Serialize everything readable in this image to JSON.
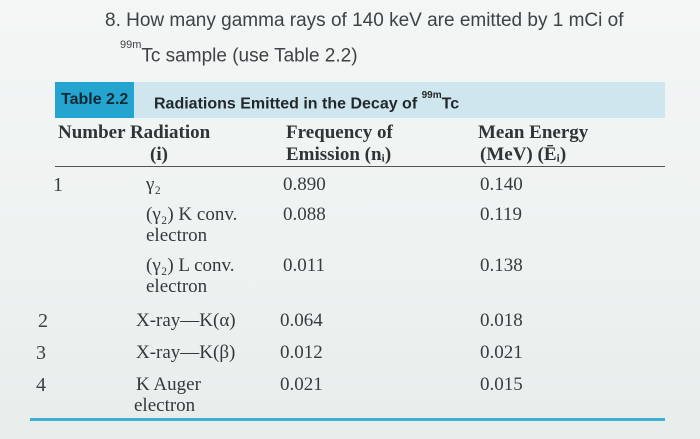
{
  "question": {
    "line1": "8. How many gamma rays of 140 keV are emitted by 1 mCi of",
    "line2_sup": "99m",
    "line2_rest": "Tc sample (use Table 2.2)"
  },
  "table": {
    "tag": "Table 2.2",
    "caption_main": "Radiations Emitted in the Decay of ",
    "caption_sup": "99m",
    "caption_end": "Tc",
    "headers": {
      "number_radiation": "Number Radiation",
      "i": "(i)",
      "frequency": "Frequency of",
      "emission": "Emission (nᵢ)",
      "mean_energy": "Mean Energy",
      "mev": "(MeV) (Ēᵢ)"
    },
    "rows": [
      {
        "number": "1",
        "radiation": "γ₂",
        "radiation2": "",
        "frequency": "0.890",
        "energy": "0.140"
      },
      {
        "number": "",
        "radiation": "(γ₂) K conv.",
        "radiation2": "electron",
        "frequency": "0.088",
        "energy": "0.119"
      },
      {
        "number": "",
        "radiation": "(γ₂) L conv.",
        "radiation2": "electron",
        "frequency": "0.011",
        "energy": "0.138"
      },
      {
        "number": "2",
        "radiation": "X-ray—K(α)",
        "radiation2": "",
        "frequency": "0.064",
        "energy": "0.018"
      },
      {
        "number": "3",
        "radiation": "X-ray—K(β)",
        "radiation2": "",
        "frequency": "0.012",
        "energy": "0.021"
      },
      {
        "number": "4",
        "radiation": "K Auger",
        "radiation2": "electron",
        "frequency": "0.021",
        "energy": "0.015"
      }
    ]
  }
}
